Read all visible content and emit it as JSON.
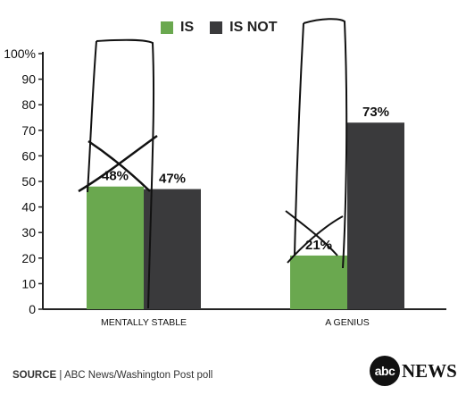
{
  "legend": {
    "is_label": "IS",
    "is_not_label": "IS NOT",
    "is_color": "#6aa84f",
    "is_not_color": "#3a3a3c"
  },
  "footer": {
    "source_label": "SOURCE",
    "source_text": "ABC News/Washington Post poll",
    "brand_abc": "abc",
    "brand_news": "NEWS"
  },
  "chart_data": {
    "type": "bar",
    "categories": [
      "MENTALLY STABLE",
      "A GENIUS"
    ],
    "series": [
      {
        "name": "IS",
        "values": [
          48,
          21
        ]
      },
      {
        "name": "IS NOT",
        "values": [
          47,
          73
        ]
      }
    ],
    "data_labels": [
      [
        "48%",
        "47%"
      ],
      [
        "21%",
        "73%"
      ]
    ],
    "ylim": [
      0,
      100
    ],
    "yticks": [
      0,
      10,
      20,
      30,
      40,
      50,
      60,
      70,
      80,
      90,
      100
    ],
    "ytick_labels": [
      "0",
      "10",
      "20",
      "30",
      "40",
      "50",
      "60",
      "70",
      "80",
      "90",
      "100%"
    ],
    "grid": false,
    "legend_position": "top"
  }
}
